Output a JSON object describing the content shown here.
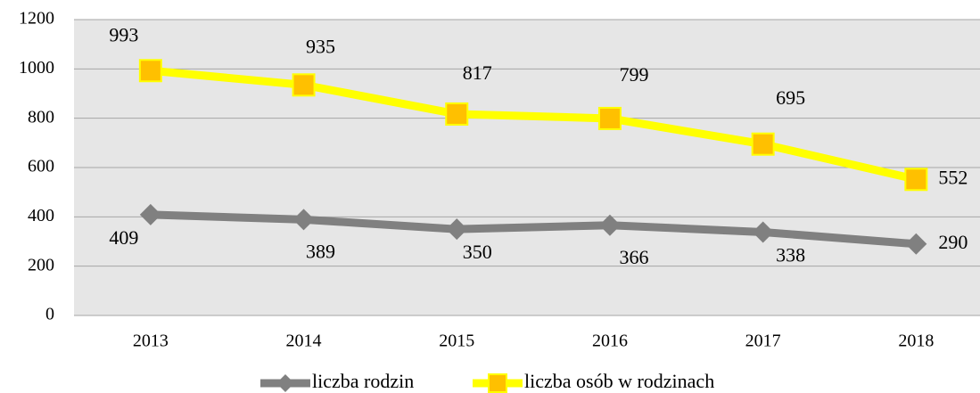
{
  "chart_data": {
    "type": "line",
    "categories": [
      "2013",
      "2014",
      "2015",
      "2016",
      "2017",
      "2018"
    ],
    "series": [
      {
        "name": "liczba rodzin",
        "color": "#808080",
        "marker": "diamond",
        "values": [
          409,
          389,
          350,
          366,
          338,
          290
        ]
      },
      {
        "name": "liczba osób w rodzinach",
        "color": "#FFFF00",
        "marker_color": "#FFC000",
        "marker": "square",
        "values": [
          993,
          935,
          817,
          799,
          695,
          552
        ]
      }
    ],
    "ylim": [
      0,
      1200
    ],
    "yticks": [
      0,
      200,
      400,
      600,
      800,
      1000,
      1200
    ],
    "grid": true,
    "legend": "bottom"
  }
}
